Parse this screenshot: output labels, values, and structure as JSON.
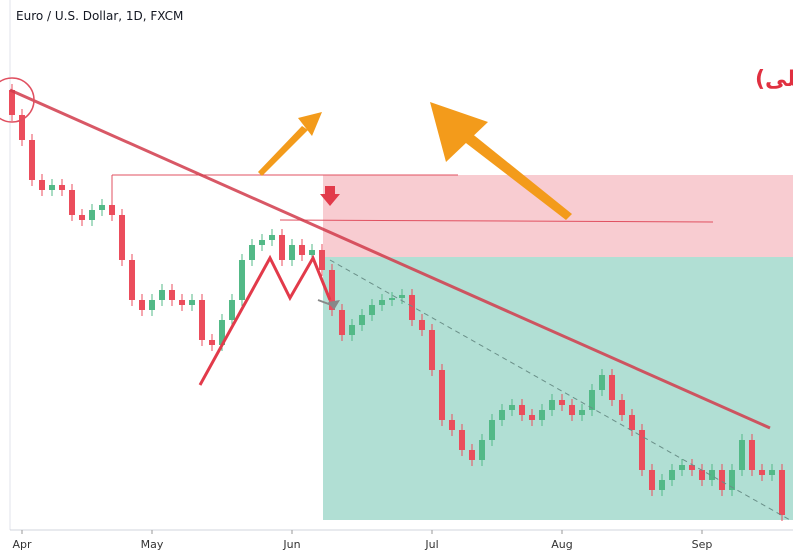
{
  "chart_data": {
    "type": "candlestick",
    "title": "Euro / U.S. Dollar, 1D, FXCM",
    "annotation": "گزینه های مناسب برای قرار دادن محل حد ضرر(سقف های قبلی)",
    "up_color": "#53b987",
    "down_color": "#eb4d5c",
    "xlim": [
      0,
      78
    ],
    "xticks": [
      {
        "value": 1,
        "label": "Apr"
      },
      {
        "value": 14,
        "label": "May"
      },
      {
        "value": 28,
        "label": "Jun"
      },
      {
        "value": 42,
        "label": "Jul"
      },
      {
        "value": 55,
        "label": "Aug"
      },
      {
        "value": 69,
        "label": "Sep"
      }
    ],
    "ylim": [
      1.08,
      1.127
    ],
    "open": [
      1.124,
      1.1215,
      1.119,
      1.115,
      1.114,
      1.1145,
      1.114,
      1.1115,
      1.111,
      1.112,
      1.1125,
      1.1115,
      1.107,
      1.103,
      1.102,
      1.103,
      1.104,
      1.103,
      1.1025,
      1.103,
      1.099,
      1.0985,
      1.101,
      1.103,
      1.107,
      1.1085,
      1.109,
      1.1095,
      1.107,
      1.1085,
      1.1075,
      1.108,
      1.106,
      1.102,
      1.0995,
      1.1005,
      1.1015,
      1.1025,
      1.103,
      1.1032,
      1.1035,
      1.101,
      1.1,
      1.096,
      1.091,
      1.09,
      1.088,
      1.087,
      1.089,
      1.091,
      1.092,
      1.0925,
      1.0915,
      1.091,
      1.092,
      1.093,
      1.0925,
      1.0915,
      1.092,
      1.094,
      1.0955,
      1.093,
      1.0915,
      1.09,
      1.086,
      1.084,
      1.085,
      1.086,
      1.0865,
      1.086,
      1.085,
      1.086,
      1.084,
      1.086,
      1.089,
      1.086,
      1.0855,
      1.086
    ],
    "high": [
      1.1246,
      1.1221,
      1.1196,
      1.1156,
      1.1151,
      1.1151,
      1.1146,
      1.1121,
      1.1126,
      1.1131,
      1.1131,
      1.1121,
      1.1076,
      1.1036,
      1.1036,
      1.1046,
      1.1046,
      1.1036,
      1.1036,
      1.1036,
      1.0996,
      1.1016,
      1.1036,
      1.1076,
      1.1091,
      1.1096,
      1.1101,
      1.1101,
      1.1091,
      1.1091,
      1.1086,
      1.1086,
      1.1066,
      1.1026,
      1.1011,
      1.1021,
      1.1031,
      1.1036,
      1.1038,
      1.1041,
      1.1041,
      1.1016,
      1.1006,
      1.0966,
      1.0916,
      1.0906,
      1.0886,
      1.0896,
      1.0916,
      1.0926,
      1.0931,
      1.0931,
      1.0921,
      1.0926,
      1.0936,
      1.0936,
      1.0931,
      1.0926,
      1.0946,
      1.0961,
      1.0961,
      1.0936,
      1.0921,
      1.0906,
      1.0866,
      1.0856,
      1.0866,
      1.0871,
      1.0871,
      1.0866,
      1.0866,
      1.0866,
      1.0866,
      1.0896,
      1.0896,
      1.0866,
      1.0866,
      1.0866
    ],
    "low": [
      1.1209,
      1.1184,
      1.1144,
      1.1134,
      1.1134,
      1.1134,
      1.1109,
      1.1104,
      1.1104,
      1.1114,
      1.1109,
      1.1064,
      1.1024,
      1.1014,
      1.1014,
      1.1024,
      1.1024,
      1.1019,
      1.1019,
      1.0984,
      1.0979,
      1.0979,
      1.1004,
      1.1024,
      1.1064,
      1.1079,
      1.1084,
      1.1064,
      1.1064,
      1.1069,
      1.1069,
      1.1054,
      1.1014,
      1.0989,
      1.0989,
      1.0999,
      1.1009,
      1.1019,
      1.1024,
      1.1026,
      1.1004,
      1.0994,
      1.0954,
      1.0904,
      1.0894,
      1.0874,
      1.0864,
      1.0864,
      1.0884,
      1.0904,
      1.0914,
      1.0909,
      1.0904,
      1.0904,
      1.0914,
      1.0919,
      1.0909,
      1.0909,
      1.0914,
      1.0934,
      1.0924,
      1.0909,
      1.0894,
      1.0854,
      1.0834,
      1.0834,
      1.0844,
      1.0854,
      1.0854,
      1.0844,
      1.0844,
      1.0834,
      1.0834,
      1.0854,
      1.0854,
      1.0849,
      1.0849,
      1.0809
    ],
    "close": [
      1.1215,
      1.119,
      1.115,
      1.114,
      1.1145,
      1.114,
      1.1115,
      1.111,
      1.112,
      1.1125,
      1.1115,
      1.107,
      1.103,
      1.102,
      1.103,
      1.104,
      1.103,
      1.1025,
      1.103,
      1.099,
      1.0985,
      1.101,
      1.103,
      1.107,
      1.1085,
      1.109,
      1.1095,
      1.107,
      1.1085,
      1.1075,
      1.108,
      1.106,
      1.102,
      1.0995,
      1.1005,
      1.1015,
      1.1025,
      1.103,
      1.1032,
      1.1035,
      1.101,
      1.1,
      1.096,
      1.091,
      1.09,
      1.088,
      1.087,
      1.089,
      1.091,
      1.092,
      1.0925,
      1.0915,
      1.091,
      1.092,
      1.093,
      1.0925,
      1.0915,
      1.092,
      1.094,
      1.0955,
      1.093,
      1.0915,
      1.09,
      1.086,
      1.084,
      1.085,
      1.086,
      1.0865,
      1.086,
      1.085,
      1.086,
      1.084,
      1.086,
      1.089,
      1.086,
      1.0855,
      1.086,
      1.0815
    ]
  }
}
